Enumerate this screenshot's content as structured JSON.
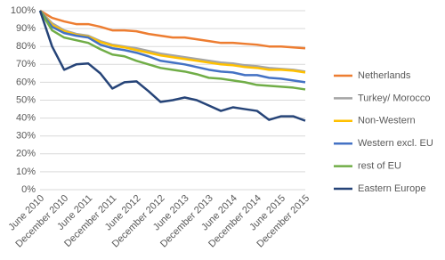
{
  "chart_data": {
    "type": "line",
    "categories": [
      "June 2010",
      null,
      "December 2010",
      null,
      "June 2011",
      null,
      "December 2011",
      null,
      "June 2012",
      null,
      "December 2012",
      null,
      "June 2013",
      null,
      "December 2013",
      null,
      "June 2014",
      null,
      "December 2014",
      null,
      "June 2015",
      null,
      "December 2015"
    ],
    "ylim": [
      0,
      100
    ],
    "yticks": [
      {
        "value": 0,
        "label": "0%"
      },
      {
        "value": 10,
        "label": "10%"
      },
      {
        "value": 20,
        "label": "20%"
      },
      {
        "value": 30,
        "label": "30%"
      },
      {
        "value": 40,
        "label": "40%"
      },
      {
        "value": 50,
        "label": "50%"
      },
      {
        "value": 60,
        "label": "60%"
      },
      {
        "value": 70,
        "label": "70%"
      },
      {
        "value": 80,
        "label": "80%"
      },
      {
        "value": 90,
        "label": "90%"
      },
      {
        "value": 100,
        "label": "100%"
      }
    ],
    "grid": true,
    "legend": "right",
    "series": [
      {
        "name": "Netherlands",
        "color": "#ed7d31",
        "values": [
          100,
          96,
          94,
          92.5,
          92.5,
          91,
          89,
          89,
          88.5,
          87,
          86,
          85,
          85,
          84,
          83,
          82,
          82,
          81.5,
          81,
          80,
          80,
          79.5,
          79
        ]
      },
      {
        "name": "Turkey/ Morocco",
        "color": "#a5a5a5",
        "values": [
          100,
          93,
          89,
          87,
          86,
          83,
          81,
          80,
          79,
          77.5,
          76,
          75,
          74,
          73,
          72,
          71,
          70.5,
          69.5,
          69,
          68,
          67.5,
          67,
          66
        ]
      },
      {
        "name": "Non-Western",
        "color": "#ffc000",
        "values": [
          100,
          92,
          88.5,
          86.5,
          85.5,
          82.5,
          80.5,
          79.5,
          78,
          76.5,
          75,
          74,
          73,
          72,
          71,
          70,
          69.5,
          68.5,
          68,
          67,
          67,
          66.5,
          65.5
        ]
      },
      {
        "name": "Western excl. EU",
        "color": "#4472c4",
        "values": [
          100,
          91,
          87.5,
          86,
          85,
          81,
          79,
          78,
          76.5,
          74.5,
          72,
          71,
          70,
          68.5,
          67,
          66,
          65.5,
          64,
          64,
          62.5,
          62,
          61,
          60
        ]
      },
      {
        "name": "rest of EU",
        "color": "#70ad47",
        "values": [
          100,
          89,
          85,
          83.5,
          82,
          78.5,
          75.5,
          74.5,
          72,
          70,
          68,
          67,
          66,
          64.5,
          62.5,
          62,
          61,
          60,
          58.5,
          58,
          57.5,
          57,
          56
        ]
      },
      {
        "name": "Eastern Europe",
        "color": "#264478",
        "values": [
          100,
          80,
          67,
          70,
          70.5,
          65,
          56.5,
          60,
          60.5,
          55,
          49,
          50,
          51.5,
          50,
          47,
          44,
          46,
          45,
          44,
          39,
          41,
          41,
          38.5
        ]
      }
    ]
  }
}
